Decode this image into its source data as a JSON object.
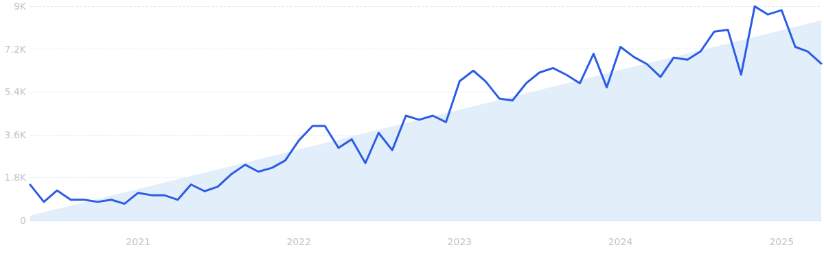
{
  "chart_data": {
    "type": "line",
    "x": [
      "2020-05",
      "2020-06",
      "2020-07",
      "2020-08",
      "2020-09",
      "2020-10",
      "2020-11",
      "2020-12",
      "2021-01",
      "2021-02",
      "2021-03",
      "2021-04",
      "2021-05",
      "2021-06",
      "2021-07",
      "2021-08",
      "2021-09",
      "2021-10",
      "2021-11",
      "2021-12",
      "2022-01",
      "2022-02",
      "2022-03",
      "2022-04",
      "2022-05",
      "2022-06",
      "2022-07",
      "2022-08",
      "2022-09",
      "2022-10",
      "2022-11",
      "2022-12",
      "2023-01",
      "2023-02",
      "2023-03",
      "2023-04",
      "2023-05",
      "2023-06",
      "2023-07",
      "2023-08",
      "2023-09",
      "2023-10",
      "2023-11",
      "2023-12",
      "2024-01",
      "2024-02",
      "2024-03",
      "2024-04",
      "2024-05",
      "2024-06",
      "2024-07",
      "2024-08",
      "2024-09",
      "2024-10",
      "2024-11",
      "2024-12",
      "2025-01",
      "2025-02",
      "2025-03",
      "2025-04"
    ],
    "series": [
      {
        "type": "area",
        "color": "#e3eefb",
        "x": [
          "2020-05",
          "2025-04"
        ],
        "values": [
          200,
          8400
        ]
      },
      {
        "type": "line",
        "color": "#2b5ce6",
        "values": [
          1500,
          780,
          1260,
          870,
          870,
          780,
          870,
          700,
          1160,
          1060,
          1060,
          870,
          1510,
          1230,
          1420,
          1950,
          2340,
          2050,
          2210,
          2520,
          3360,
          3970,
          3970,
          3050,
          3410,
          2410,
          3680,
          2950,
          4400,
          4230,
          4400,
          4130,
          5850,
          6290,
          5840,
          5120,
          5040,
          5760,
          6210,
          6400,
          6110,
          5760,
          7000,
          5590,
          7290,
          6860,
          6570,
          6030,
          6840,
          6750,
          7100,
          7930,
          8010,
          6120,
          8990,
          8650,
          8830,
          7290,
          7100,
          6590
        ]
      }
    ],
    "xlim": [
      "2020-05",
      "2025-04"
    ],
    "xticks": [
      "2021",
      "2022",
      "2023",
      "2024",
      "2025"
    ],
    "ylim": [
      0,
      9000
    ],
    "yticks": [
      0,
      {
        "value": 1800,
        "label": "1.8K"
      },
      {
        "value": 3600,
        "label": "3.6K"
      },
      {
        "value": 5400,
        "label": "5.4K"
      },
      {
        "value": 7200,
        "label": "7.2K"
      },
      {
        "value": 9000,
        "label": "9K"
      }
    ],
    "grid": "y",
    "line_style": "solid",
    "marker": "none"
  }
}
